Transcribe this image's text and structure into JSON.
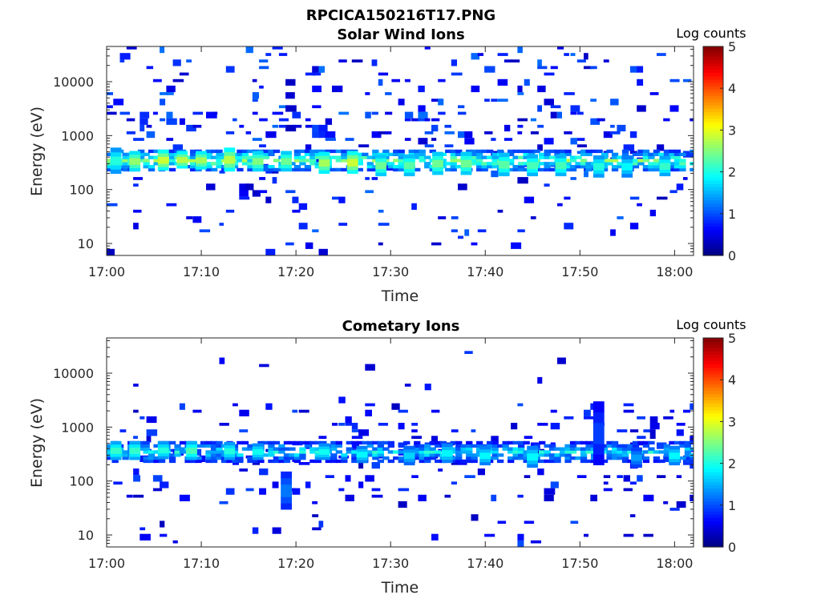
{
  "figure_title": "RPCICA150216T17.PNG",
  "chart_data": [
    {
      "type": "heatmap",
      "title": "Solar Wind Ions",
      "xlabel": "Time",
      "ylabel": "Energy (eV)",
      "x_ticks": [
        "17:00",
        "17:10",
        "17:20",
        "17:30",
        "17:40",
        "17:50",
        "18:00"
      ],
      "xlim": [
        "17:00",
        "18:02"
      ],
      "y_scale": "log",
      "y_ticks": [
        10,
        100,
        1000,
        10000
      ],
      "ylim": [
        6,
        45000
      ],
      "colorbar": {
        "label": "Log counts",
        "ticks": [
          0,
          1,
          2,
          3,
          4,
          5
        ],
        "range": [
          0,
          5
        ],
        "colormap": "jet"
      },
      "band": {
        "energy_eV": [
          220,
          550
        ],
        "peak_log_counts": 3.0
      },
      "blocks": [
        {
          "time": "17:01",
          "energy_eV": [
            200,
            600
          ],
          "log_counts": 2.2
        },
        {
          "time": "17:03",
          "energy_eV": [
            220,
            520
          ],
          "log_counts": 2.8
        },
        {
          "time": "17:06",
          "energy_eV": [
            230,
            550
          ],
          "log_counts": 3.1
        },
        {
          "time": "17:08",
          "energy_eV": [
            250,
            520
          ],
          "log_counts": 3.0
        },
        {
          "time": "17:10",
          "energy_eV": [
            240,
            520
          ],
          "log_counts": 2.9
        },
        {
          "time": "17:13",
          "energy_eV": [
            220,
            600
          ],
          "log_counts": 3.0
        },
        {
          "time": "17:16",
          "energy_eV": [
            220,
            520
          ],
          "log_counts": 2.7
        },
        {
          "time": "17:19",
          "energy_eV": [
            220,
            520
          ],
          "log_counts": 2.6
        },
        {
          "time": "17:23",
          "energy_eV": [
            200,
            500
          ],
          "log_counts": 2.9
        },
        {
          "time": "17:26",
          "energy_eV": [
            200,
            520
          ],
          "log_counts": 3.1
        },
        {
          "time": "17:29",
          "energy_eV": [
            180,
            450
          ],
          "log_counts": 2.6
        },
        {
          "time": "17:32",
          "energy_eV": [
            180,
            450
          ],
          "log_counts": 2.5
        },
        {
          "time": "17:35",
          "energy_eV": [
            190,
            500
          ],
          "log_counts": 2.6
        },
        {
          "time": "17:38",
          "energy_eV": [
            190,
            500
          ],
          "log_counts": 2.6
        },
        {
          "time": "17:42",
          "energy_eV": [
            180,
            480
          ],
          "log_counts": 2.5
        },
        {
          "time": "17:45",
          "energy_eV": [
            180,
            450
          ],
          "log_counts": 2.4
        },
        {
          "time": "17:48",
          "energy_eV": [
            180,
            450
          ],
          "log_counts": 2.4
        },
        {
          "time": "17:52",
          "energy_eV": [
            170,
            430
          ],
          "log_counts": 2.2
        },
        {
          "time": "17:55",
          "energy_eV": [
            170,
            430
          ],
          "log_counts": 2.0
        },
        {
          "time": "17:59",
          "energy_eV": [
            180,
            420
          ],
          "log_counts": 2.3
        }
      ]
    },
    {
      "type": "heatmap",
      "title": "Cometary Ions",
      "xlabel": "Time",
      "ylabel": "Energy (eV)",
      "x_ticks": [
        "17:00",
        "17:10",
        "17:20",
        "17:30",
        "17:40",
        "17:50",
        "18:00"
      ],
      "xlim": [
        "17:00",
        "18:02"
      ],
      "y_scale": "log",
      "y_ticks": [
        10,
        100,
        1000,
        10000
      ],
      "ylim": [
        6,
        45000
      ],
      "colorbar": {
        "label": "Log counts",
        "ticks": [
          0,
          1,
          2,
          3,
          4,
          5
        ],
        "range": [
          0,
          5
        ],
        "colormap": "jet"
      },
      "band": {
        "energy_eV": [
          220,
          550
        ],
        "peak_log_counts": 2.3
      },
      "blocks": [
        {
          "time": "17:01",
          "energy_eV": [
            250,
            550
          ],
          "log_counts": 2.3
        },
        {
          "time": "17:03",
          "energy_eV": [
            250,
            550
          ],
          "log_counts": 2.3
        },
        {
          "time": "17:06",
          "energy_eV": [
            260,
            550
          ],
          "log_counts": 2.2
        },
        {
          "time": "17:09",
          "energy_eV": [
            250,
            550
          ],
          "log_counts": 2.4
        },
        {
          "time": "17:13",
          "energy_eV": [
            250,
            530
          ],
          "log_counts": 2.2
        },
        {
          "time": "17:16",
          "energy_eV": [
            250,
            500
          ],
          "log_counts": 2.1
        },
        {
          "time": "17:19",
          "energy_eV": [
            30,
            150
          ],
          "log_counts": 1.3
        },
        {
          "time": "17:23",
          "energy_eV": [
            250,
            500
          ],
          "log_counts": 2.1
        },
        {
          "time": "17:27",
          "energy_eV": [
            220,
            450
          ],
          "log_counts": 2.0
        },
        {
          "time": "17:32",
          "energy_eV": [
            200,
            450
          ],
          "log_counts": 1.8
        },
        {
          "time": "17:36",
          "energy_eV": [
            220,
            500
          ],
          "log_counts": 2.0
        },
        {
          "time": "17:40",
          "energy_eV": [
            200,
            450
          ],
          "log_counts": 2.0
        },
        {
          "time": "17:45",
          "energy_eV": [
            180,
            450
          ],
          "log_counts": 2.0
        },
        {
          "time": "17:52",
          "energy_eV": [
            200,
            3000
          ],
          "log_counts": 1.0
        },
        {
          "time": "17:56",
          "energy_eV": [
            180,
            420
          ],
          "log_counts": 1.5
        },
        {
          "time": "18:00",
          "energy_eV": [
            200,
            450
          ],
          "log_counts": 2.0
        }
      ]
    }
  ]
}
